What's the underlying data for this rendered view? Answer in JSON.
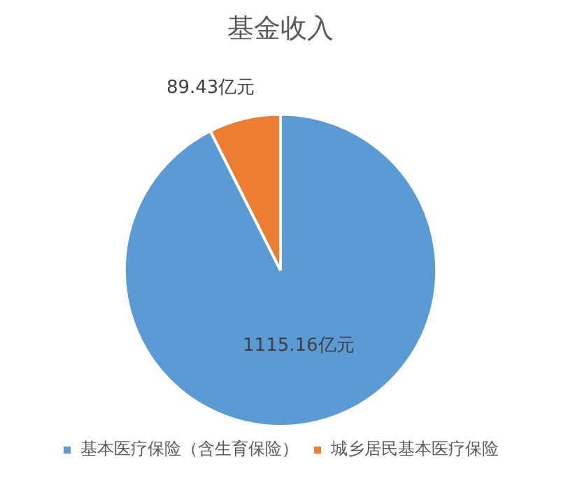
{
  "chart_data": {
    "type": "pie",
    "title": "基金收入",
    "categories": [
      "基本医疗保险（含生育保险）",
      "城乡居民基本医疗保险"
    ],
    "values": [
      1115.16,
      89.43
    ],
    "colors": [
      "#5b9bd5",
      "#ed7d31"
    ],
    "value_labels": [
      "1115.16亿元",
      "89.43亿元"
    ],
    "legend": "bottom"
  }
}
